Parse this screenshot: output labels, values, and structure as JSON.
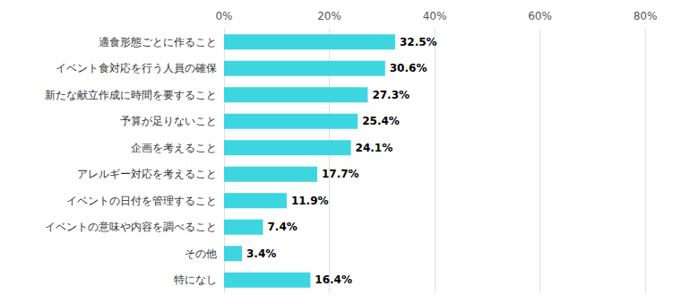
{
  "chart_data": {
    "type": "bar",
    "orientation": "horizontal",
    "categories": [
      "適食形態ごとに作ること",
      "イベント食対応を行う人員の確保",
      "新たな献立作成に時間を要すること",
      "予算が足りないこと",
      "企画を考えること",
      "アレルギー対応を考えること",
      "イベントの日付を管理すること",
      "イベントの意味や内容を調べること",
      "その他",
      "特になし"
    ],
    "values": [
      32.5,
      30.6,
      27.3,
      25.4,
      24.1,
      17.7,
      11.9,
      7.4,
      3.4,
      16.4
    ],
    "value_labels": [
      "32.5%",
      "30.6%",
      "27.3%",
      "25.4%",
      "24.1%",
      "17.7%",
      "11.9%",
      "7.4%",
      "3.4%",
      "16.4%"
    ],
    "color": "#3dd6e0",
    "xlim": [
      0,
      80
    ],
    "xticks": [
      {
        "value": 0,
        "label": "0%"
      },
      {
        "value": 20,
        "label": "20%"
      },
      {
        "value": 40,
        "label": "40%"
      },
      {
        "value": 60,
        "label": "60%"
      },
      {
        "value": 80,
        "label": "80%"
      }
    ],
    "grid": true,
    "data_labels": true
  }
}
